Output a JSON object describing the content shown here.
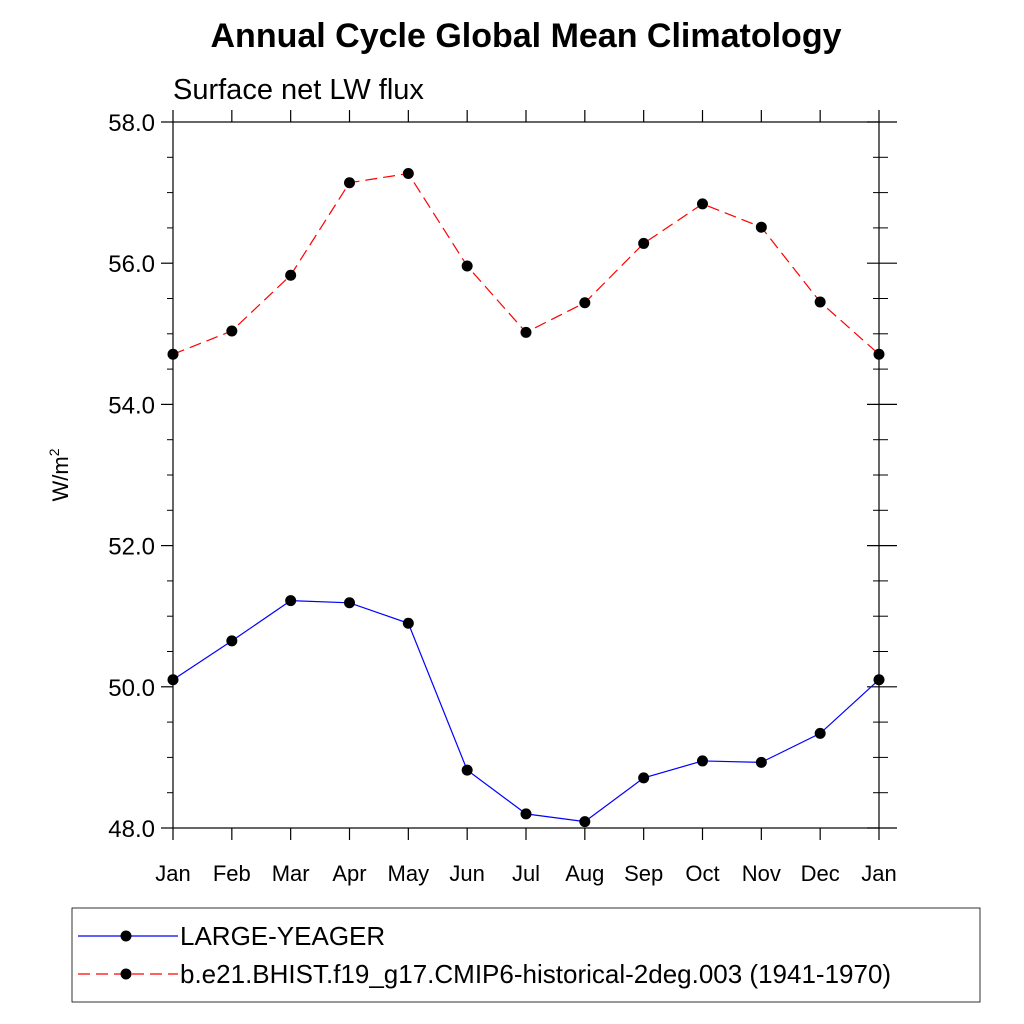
{
  "chart_data": {
    "type": "line",
    "title": "Annual Cycle Global Mean Climatology",
    "subtitle": "Surface net LW flux",
    "ylabel": "W/m",
    "ylabel_sup": "2",
    "xlabel": "",
    "categories": [
      "Jan",
      "Feb",
      "Mar",
      "Apr",
      "May",
      "Jun",
      "Jul",
      "Aug",
      "Sep",
      "Oct",
      "Nov",
      "Dec",
      "Jan"
    ],
    "ylim": [
      48.0,
      58.0
    ],
    "yticks": [
      48.0,
      50.0,
      52.0,
      54.0,
      56.0,
      58.0
    ],
    "ytick_labels": [
      "48.0",
      "50.0",
      "52.0",
      "54.0",
      "56.0",
      "58.0"
    ],
    "grid": false,
    "legend_position": "bottom",
    "series": [
      {
        "name": "LARGE-YEAGER",
        "color": "#0000ff",
        "dash": "solid",
        "values": [
          50.1,
          50.65,
          51.22,
          51.19,
          50.9,
          48.82,
          48.2,
          48.09,
          48.71,
          48.95,
          48.93,
          49.34,
          50.1
        ]
      },
      {
        "name": "b.e21.BHIST.f19_g17.CMIP6-historical-2deg.003 (1941-1970)",
        "color": "#ff0000",
        "dash": "dashed",
        "values": [
          54.71,
          55.04,
          55.83,
          57.14,
          57.27,
          55.96,
          55.02,
          55.44,
          56.28,
          56.84,
          56.51,
          55.45,
          54.71
        ]
      }
    ]
  }
}
